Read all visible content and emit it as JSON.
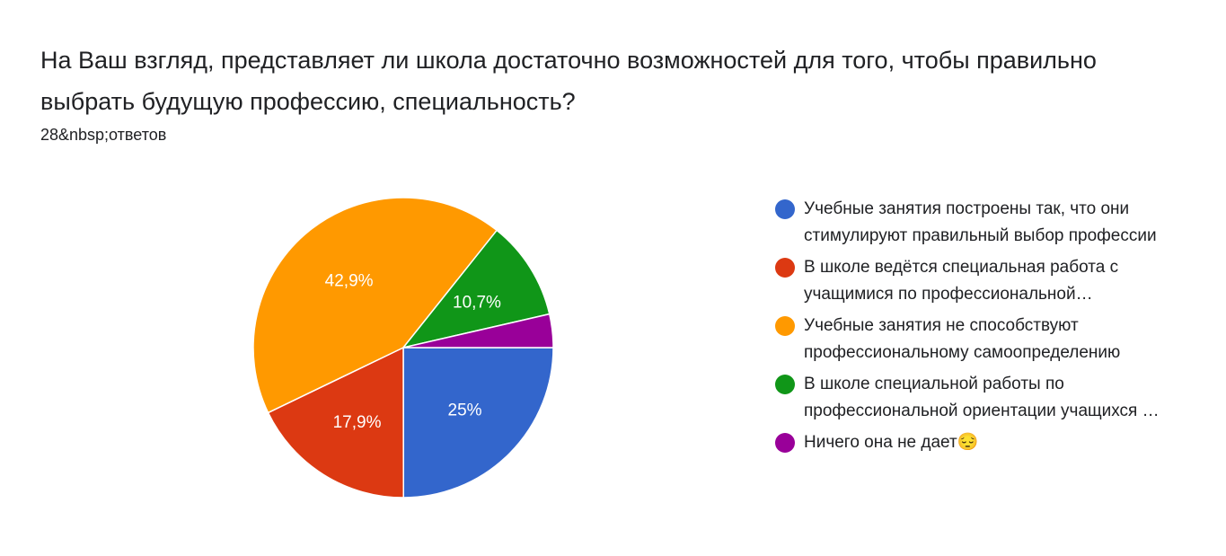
{
  "header": {
    "title": "На Ваш взгляд, представляет ли школа достаточно возможностей для того, чтобы правильно выбрать будущую профессию, специальность?",
    "response_count": "28&nbsp;ответов"
  },
  "chart_data": {
    "type": "pie",
    "title": "На Ваш взгляд, представляет ли школа достаточно возможностей для того, чтобы правильно выбрать будущую профессию, специальность?",
    "legend_position": "right",
    "slices": [
      {
        "label": "Учебные занятия построены так, что они стимулируют правильный выбор профессии",
        "value": 25,
        "display": "25%",
        "color": "#3366cc",
        "lines": 3
      },
      {
        "label": "В школе ведётся специальная работа с учащимися по профессиональной ориентации",
        "value": 17.9,
        "display": "17,9%",
        "color": "#dc3912",
        "lines": 2
      },
      {
        "label": "Учебные занятия не способствуют профессиональному самоопределению",
        "value": 42.9,
        "display": "42,9%",
        "color": "#ff9900",
        "lines": 2
      },
      {
        "label": "В школе специальной работы по профессиональной ориентации учащихся не ведётся",
        "value": 10.7,
        "display": "10,7%",
        "color": "#109618",
        "lines": 2
      },
      {
        "label": "Ничего она не дает😔",
        "value": 3.6,
        "display": "",
        "color": "#990099",
        "lines": 1
      }
    ]
  }
}
